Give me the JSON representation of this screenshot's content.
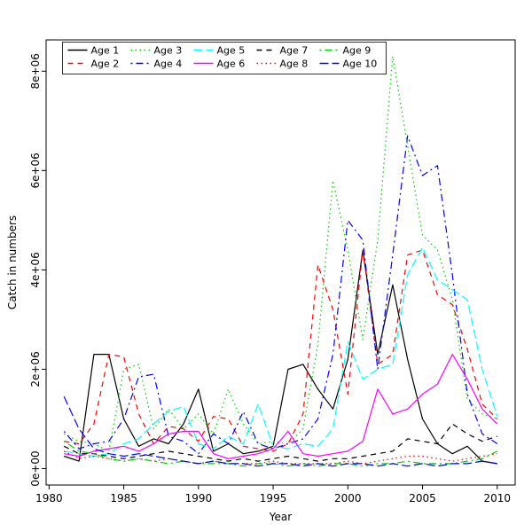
{
  "figure": {
    "background": "#ffffff"
  },
  "chart_data": {
    "type": "line",
    "title": "",
    "xlabel": "Year",
    "ylabel": "Catch in numbers",
    "grid": false,
    "legend": {
      "position": "top-left",
      "ncol": 5
    },
    "xlim": [
      1979.8,
      2011.2
    ],
    "ylim": [
      -330000,
      8630000
    ],
    "x_ticks": {
      "values": [
        1980,
        1985,
        1990,
        1995,
        2000,
        2005,
        2010
      ],
      "labels": [
        "1980",
        "1985",
        "1990",
        "1995",
        "2000",
        "2005",
        "2010"
      ]
    },
    "y_ticks": {
      "values": [
        0,
        2000000,
        4000000,
        6000000,
        8000000
      ],
      "labels": [
        "0e+00",
        "2e+06",
        "4e+06",
        "6e+06",
        "8e+06"
      ]
    },
    "x": [
      1981,
      1982,
      1983,
      1984,
      1985,
      1986,
      1987,
      1988,
      1989,
      1990,
      1991,
      1992,
      1993,
      1994,
      1995,
      1996,
      1997,
      1998,
      1999,
      2000,
      2001,
      2002,
      2003,
      2004,
      2005,
      2006,
      2007,
      2008,
      2009,
      2010
    ],
    "series": [
      {
        "name": "Age 1",
        "color": "#000000",
        "linestyle": "solid",
        "values": [
          250000,
          150000,
          2300000,
          2300000,
          1000000,
          450000,
          600000,
          500000,
          900000,
          1600000,
          350000,
          500000,
          300000,
          350000,
          450000,
          2000000,
          2100000,
          1600000,
          1200000,
          2200000,
          4400000,
          2300000,
          3700000,
          2200000,
          1000000,
          500000,
          300000,
          450000,
          150000,
          100000
        ]
      },
      {
        "name": "Age 2",
        "color": "#ff0000",
        "linestyle": "dashed",
        "values": [
          550000,
          500000,
          900000,
          2300000,
          2250000,
          1100000,
          500000,
          850000,
          800000,
          550000,
          1050000,
          1000000,
          450000,
          400000,
          350000,
          500000,
          1100000,
          4100000,
          3200000,
          1500000,
          4400000,
          2100000,
          2300000,
          4300000,
          4400000,
          3500000,
          3300000,
          2400000,
          1300000,
          1000000
        ]
      },
      {
        "name": "Age 3",
        "color": "#00cd00",
        "linestyle": "dotted",
        "values": [
          700000,
          550000,
          500000,
          350000,
          2000000,
          2100000,
          800000,
          1200000,
          800000,
          1100000,
          700000,
          1600000,
          900000,
          500000,
          550000,
          500000,
          800000,
          2500000,
          5800000,
          4400000,
          2600000,
          4600000,
          8300000,
          6500000,
          4700000,
          4400000,
          3400000,
          1400000,
          1100000,
          1000000
        ]
      },
      {
        "name": "Age 4",
        "color": "#0000ff",
        "linestyle": "dashdot",
        "values": [
          750000,
          400000,
          500000,
          550000,
          1000000,
          1850000,
          1900000,
          650000,
          550000,
          300000,
          700000,
          500000,
          1150000,
          500000,
          400000,
          500000,
          600000,
          1000000,
          2300000,
          5000000,
          4600000,
          2000000,
          4300000,
          6700000,
          5900000,
          6100000,
          3900000,
          1500000,
          700000,
          500000
        ]
      },
      {
        "name": "Age 5",
        "color": "#00ffff",
        "linestyle": "longdash",
        "values": [
          350000,
          300000,
          250000,
          300000,
          500000,
          600000,
          900000,
          1150000,
          1250000,
          500000,
          400000,
          650000,
          500000,
          1300000,
          450000,
          400000,
          500000,
          450000,
          800000,
          2550000,
          1800000,
          2000000,
          2100000,
          3900000,
          4450000,
          3800000,
          3600000,
          3400000,
          2000000,
          1050000
        ]
      },
      {
        "name": "Age 6",
        "color": "#ff00ff",
        "linestyle": "solid",
        "values": [
          300000,
          250000,
          350000,
          400000,
          450000,
          350000,
          500000,
          700000,
          750000,
          750000,
          300000,
          200000,
          250000,
          300000,
          400000,
          750000,
          300000,
          250000,
          300000,
          350000,
          550000,
          1600000,
          1100000,
          1200000,
          1500000,
          1700000,
          2300000,
          1800000,
          1200000,
          900000
        ]
      },
      {
        "name": "Age 7",
        "color": "#000000",
        "linestyle": "dashed",
        "values": [
          450000,
          300000,
          300000,
          250000,
          200000,
          250000,
          300000,
          350000,
          300000,
          250000,
          200000,
          150000,
          200000,
          150000,
          200000,
          250000,
          200000,
          150000,
          200000,
          200000,
          250000,
          300000,
          350000,
          600000,
          550000,
          500000,
          900000,
          700000,
          550000,
          650000
        ]
      },
      {
        "name": "Age 8",
        "color": "#ff0000",
        "linestyle": "dotted",
        "values": [
          350000,
          200000,
          250000,
          200000,
          150000,
          200000,
          150000,
          200000,
          150000,
          100000,
          150000,
          100000,
          100000,
          100000,
          150000,
          100000,
          100000,
          100000,
          100000,
          150000,
          100000,
          150000,
          200000,
          250000,
          250000,
          200000,
          150000,
          200000,
          250000,
          300000
        ]
      },
      {
        "name": "Age 9",
        "color": "#00cd00",
        "linestyle": "dashdot",
        "values": [
          550000,
          350000,
          300000,
          200000,
          150000,
          200000,
          150000,
          100000,
          150000,
          100000,
          100000,
          100000,
          50000,
          100000,
          100000,
          50000,
          100000,
          50000,
          100000,
          100000,
          50000,
          100000,
          100000,
          150000,
          100000,
          100000,
          100000,
          150000,
          200000,
          350000
        ]
      },
      {
        "name": "Age 10",
        "color": "#0000ff",
        "linestyle": "longdash",
        "values": [
          1450000,
          800000,
          400000,
          300000,
          250000,
          300000,
          250000,
          200000,
          150000,
          100000,
          150000,
          100000,
          100000,
          50000,
          100000,
          100000,
          50000,
          100000,
          50000,
          100000,
          100000,
          50000,
          100000,
          50000,
          100000,
          50000,
          100000,
          100000,
          150000,
          100000
        ]
      }
    ]
  }
}
